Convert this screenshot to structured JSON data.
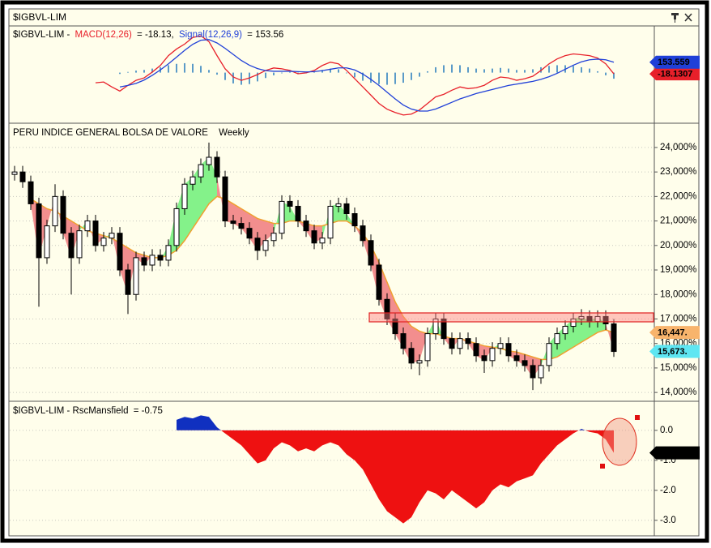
{
  "window": {
    "title": "$IGBVL-LIM"
  },
  "chart_data": [
    {
      "type": "macd",
      "title": "$IGBVL-LIM -",
      "ylim": [
        -750,
        680
      ],
      "series": [
        {
          "name": "MACD(12,26)",
          "color": "#e8202a",
          "readout_label": "= -18.13,",
          "tag": {
            "value": -18.1307
          },
          "values": [
            null,
            null,
            null,
            null,
            null,
            null,
            null,
            null,
            null,
            null,
            -151,
            -139,
            -212,
            -273,
            -188,
            -114,
            -78,
            8,
            106,
            252,
            350,
            423,
            521,
            546,
            460,
            252,
            57,
            -65,
            -114,
            -78,
            -29,
            32,
            69,
            57,
            32,
            -17,
            -4,
            32,
            106,
            155,
            130,
            32,
            -90,
            -212,
            -334,
            -457,
            -542,
            -591,
            -628,
            -615,
            -554,
            -457,
            -359,
            -322,
            -261,
            -212,
            -237,
            -224,
            -188,
            -114,
            -65,
            -78,
            -114,
            -90,
            -53,
            32,
            130,
            203,
            252,
            277,
            265,
            252,
            216,
            130,
            -18.13
          ]
        },
        {
          "name": "Signal(12,26,9)",
          "color": "#2040d8",
          "readout_label": "= 153.56",
          "tag": {
            "value": 153.559
          },
          "values": [
            null,
            null,
            null,
            null,
            null,
            null,
            null,
            null,
            null,
            null,
            null,
            null,
            null,
            -212,
            -190,
            -160,
            -110,
            -40,
            40,
            130,
            230,
            330,
            420,
            480,
            490,
            440,
            360,
            270,
            180,
            110,
            60,
            30,
            20,
            20,
            20,
            15,
            10,
            15,
            30,
            50,
            70,
            70,
            40,
            -20,
            -100,
            -190,
            -290,
            -390,
            -480,
            -540,
            -570,
            -570,
            -540,
            -490,
            -440,
            -390,
            -350,
            -310,
            -280,
            -250,
            -220,
            -190,
            -170,
            -150,
            -130,
            -100,
            -60,
            -10,
            50,
            110,
            160,
            190,
            200,
            190,
            153.56
          ]
        }
      ],
      "histogram": {
        "color": "#5b9bc8",
        "values": [
          null,
          null,
          null,
          null,
          null,
          null,
          null,
          null,
          null,
          null,
          null,
          null,
          null,
          -20,
          10,
          30,
          40,
          60,
          80,
          110,
          130,
          140,
          130,
          100,
          40,
          -30,
          -110,
          -160,
          -180,
          -170,
          -130,
          -80,
          -40,
          -10,
          10,
          -20,
          -10,
          10,
          40,
          60,
          50,
          -10,
          -70,
          -120,
          -150,
          -170,
          -180,
          -170,
          -150,
          -110,
          -60,
          20,
          80,
          110,
          120,
          110,
          80,
          60,
          50,
          60,
          70,
          60,
          40,
          40,
          50,
          80,
          100,
          110,
          110,
          100,
          80,
          60,
          20,
          -40,
          -90
        ]
      }
    },
    {
      "type": "candlestick",
      "title": "PERU INDICE GENERAL BOLSA DE VALORE",
      "period": "Weekly",
      "ylim": [
        13640,
        24990
      ],
      "grid": true,
      "up_color": "#ffffff",
      "down_color": "#000000",
      "yticks": [
        {
          "value": 24000,
          "label": "24,000%"
        },
        {
          "value": 23000,
          "label": "23,000%"
        },
        {
          "value": 22000,
          "label": "22,000%"
        },
        {
          "value": 21000,
          "label": "21,000%"
        },
        {
          "value": 20000,
          "label": "20,000%"
        },
        {
          "value": 19000,
          "label": "19,000%"
        },
        {
          "value": 18000,
          "label": "18,000%"
        },
        {
          "value": 17000,
          "label": "17,000%"
        },
        {
          "value": 16000,
          "label": "16,000%"
        },
        {
          "value": 15000,
          "label": "15,000%"
        },
        {
          "value": 14000,
          "label": "14,000%"
        }
      ],
      "open": [
        22900,
        23000,
        22600,
        21700,
        19500,
        20800,
        22000,
        20500,
        19500,
        20600,
        21000,
        20000,
        20300,
        20500,
        19000,
        18000,
        19500,
        19200,
        19600,
        19400,
        20000,
        21500,
        22500,
        22800,
        23300,
        23600,
        22800,
        21000,
        20900,
        20700,
        20300,
        19800,
        20200,
        20500,
        21800,
        21600,
        21000,
        20600,
        20100,
        20300,
        21600,
        21700,
        21300,
        20800,
        20200,
        19200,
        17800,
        17000,
        16400,
        15800,
        15200,
        15300,
        16400,
        17000,
        16200,
        15800,
        16200,
        16000,
        15500,
        15300,
        15800,
        16000,
        15500,
        15300,
        15100,
        14600,
        15100,
        16000,
        16400,
        16700,
        17000,
        17100,
        16900,
        17100,
        16800
      ],
      "high": [
        23250,
        23250,
        22850,
        21950,
        21050,
        22500,
        22250,
        20750,
        20850,
        21250,
        21250,
        20550,
        20750,
        20750,
        19250,
        19750,
        19750,
        19850,
        19850,
        20250,
        21750,
        22750,
        23050,
        23550,
        24200,
        23850,
        23050,
        21250,
        21150,
        20950,
        20550,
        20450,
        20750,
        22050,
        22050,
        21850,
        21250,
        20850,
        20550,
        21850,
        21950,
        21950,
        21550,
        21050,
        20450,
        19450,
        18050,
        17250,
        16650,
        16050,
        15550,
        16650,
        17250,
        17250,
        16450,
        16450,
        16450,
        16250,
        15750,
        16050,
        16250,
        16250,
        15750,
        15550,
        15350,
        15350,
        16250,
        16650,
        16950,
        17250,
        17400,
        17350,
        17350,
        17350,
        17000
      ],
      "low": [
        22650,
        22350,
        21450,
        17500,
        19250,
        20550,
        20250,
        18000,
        19250,
        20350,
        19750,
        19750,
        20050,
        18750,
        17200,
        17750,
        18950,
        18950,
        19150,
        19150,
        19750,
        21250,
        22250,
        22550,
        23050,
        22550,
        20750,
        20650,
        20450,
        20050,
        19400,
        19550,
        19950,
        20250,
        21350,
        20750,
        20350,
        19850,
        19850,
        20050,
        21350,
        21050,
        20550,
        19950,
        18950,
        17550,
        16750,
        16150,
        15550,
        14950,
        14700,
        15050,
        16150,
        15950,
        15550,
        15550,
        15750,
        15250,
        14800,
        15050,
        15550,
        15250,
        15050,
        14850,
        14100,
        14350,
        14850,
        15750,
        16150,
        16450,
        16750,
        16650,
        16650,
        16550,
        15450
      ],
      "close": [
        23000,
        22600,
        21700,
        19500,
        20800,
        22000,
        20500,
        19500,
        20600,
        21000,
        20000,
        20300,
        20500,
        19000,
        18000,
        19500,
        19200,
        19600,
        19400,
        20000,
        21500,
        22500,
        22800,
        23300,
        23600,
        22800,
        21000,
        20900,
        20700,
        20300,
        19800,
        20200,
        20500,
        21800,
        21600,
        21000,
        20600,
        20100,
        20300,
        21600,
        21700,
        21300,
        20800,
        20200,
        19200,
        17800,
        17000,
        16400,
        15800,
        15200,
        15300,
        16400,
        17000,
        16200,
        15800,
        16200,
        16000,
        15500,
        15300,
        15800,
        16000,
        15500,
        15300,
        15100,
        14600,
        15100,
        16000,
        16400,
        16700,
        17000,
        17100,
        16900,
        17100,
        16800,
        15673
      ],
      "close_tag": {
        "value": 15673,
        "label": "15,673.",
        "color": "#5ee6f2"
      },
      "ma": {
        "color": "#f0a030",
        "fill_up": "#84f28a",
        "fill_down": "#f28e8e",
        "tag": {
          "value": 16447,
          "label": "16,447.",
          "color": "#f8b46c"
        },
        "values": [
          null,
          null,
          21900,
          21700,
          21500,
          21400,
          21200,
          21000,
          20800,
          20600,
          20500,
          20400,
          20300,
          20100,
          19900,
          19700,
          19600,
          19500,
          19500,
          19600,
          19800,
          20200,
          20700,
          21200,
          21700,
          22000,
          21900,
          21700,
          21500,
          21300,
          21100,
          21000,
          20900,
          20900,
          21000,
          21000,
          20900,
          20800,
          20800,
          20900,
          21000,
          21000,
          20800,
          20500,
          20000,
          19300,
          18500,
          17700,
          17100,
          16700,
          16500,
          16400,
          16400,
          16300,
          16200,
          16200,
          16100,
          16000,
          15900,
          15850,
          15800,
          15700,
          15650,
          15550,
          15450,
          15350,
          15350,
          15450,
          15650,
          15850,
          16050,
          16250,
          16450,
          16550,
          16447
        ]
      }
    },
    {
      "type": "area",
      "title": "$IGBVL-LIM - RscMansfield",
      "readout_label": "= -0.75",
      "ylim": [
        -3.49,
        0.97
      ],
      "grid": true,
      "color_up": "#1030c0",
      "color_down": "#ee1111",
      "yticks": [
        {
          "value": 0,
          "label": "0.0"
        },
        {
          "value": -1,
          "label": "-1.0"
        },
        {
          "value": -2,
          "label": "-2.0"
        },
        {
          "value": -3,
          "label": "-3.0"
        }
      ],
      "tag": {
        "value": -0.74931,
        "color": "#000000"
      },
      "values": [
        null,
        null,
        null,
        null,
        null,
        null,
        null,
        null,
        null,
        null,
        null,
        null,
        null,
        null,
        null,
        null,
        null,
        null,
        null,
        null,
        0.35,
        0.45,
        0.4,
        0.5,
        0.45,
        0.1,
        -0.1,
        -0.3,
        -0.5,
        -0.8,
        -1.1,
        -1.0,
        -0.6,
        -0.4,
        -0.5,
        -0.7,
        -0.6,
        -0.7,
        -0.5,
        -0.4,
        -0.5,
        -0.8,
        -1.0,
        -1.3,
        -1.8,
        -2.3,
        -2.7,
        -2.9,
        -3.1,
        -2.9,
        -2.4,
        -2.0,
        -2.1,
        -2.3,
        -2.0,
        -2.2,
        -2.4,
        -2.6,
        -2.4,
        -2.0,
        -1.8,
        -1.9,
        -1.7,
        -1.6,
        -1.5,
        -1.1,
        -0.8,
        -0.5,
        -0.3,
        -0.1,
        0.05,
        -0.05,
        -0.1,
        -0.3,
        -0.74931
      ]
    }
  ]
}
